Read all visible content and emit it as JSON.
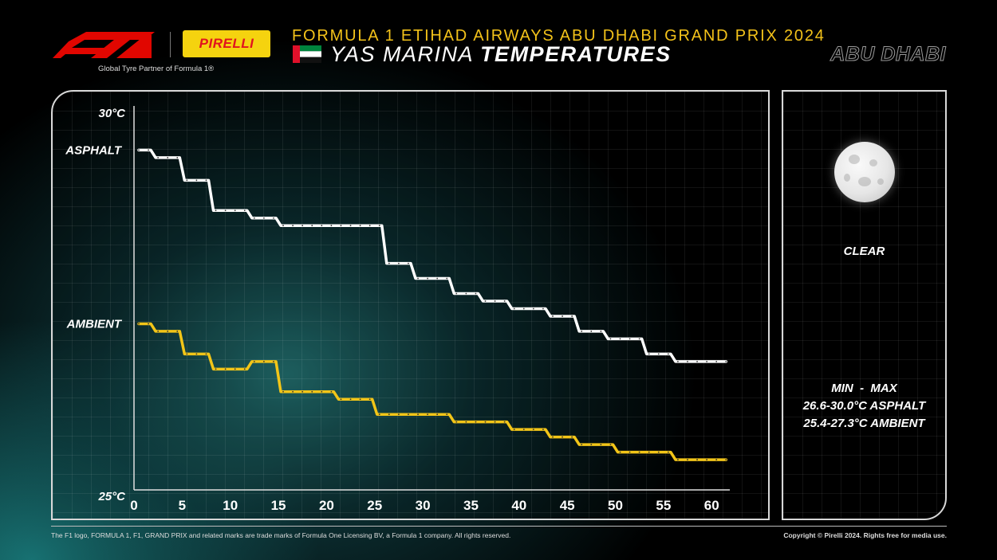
{
  "header": {
    "partner_text": "Global Tyre Partner of Formula 1®",
    "pirelli_logo_text": "PIRELLI",
    "event_title": "FORMULA 1 ETIHAD AIRWAYS ABU DHABI GRAND PRIX 2024",
    "circuit_name": "YAS MARINA",
    "page_subject": "TEMPERATURES",
    "location": "ABU DHABI"
  },
  "weather": {
    "condition": "CLEAR",
    "icon": "moon-icon",
    "minmax_label": "MIN  -  MAX",
    "asphalt_range": "26.6-30.0°C ASPHALT",
    "ambient_range": "25.4-27.3°C AMBIENT"
  },
  "footer": {
    "trademark": "The F1 logo, FORMULA 1, F1, GRAND PRIX and related marks are trade marks of Formula One Licensing BV, a Formula 1 company. All rights reserved.",
    "copyright": "Copyright © Pirelli 2024. Rights free for media use."
  },
  "colors": {
    "asphalt_line": "#ffffff",
    "ambient_line": "#f2c518",
    "title_accent": "#f3c21a",
    "f1_red": "#e10600",
    "pirelli_yellow": "#f5d30f"
  },
  "chart_data": {
    "type": "line",
    "x_ticks": [
      0,
      5,
      10,
      15,
      20,
      25,
      30,
      35,
      40,
      45,
      50,
      55,
      60
    ],
    "ylim": [
      25,
      30
    ],
    "xlim": [
      0,
      62
    ],
    "y_tick_labels": [
      "30°C",
      "25°C"
    ],
    "grid": true,
    "series": [
      {
        "name": "ASPHALT",
        "color": "#ffffff",
        "x": [
          0,
          1,
          2,
          3,
          4,
          5,
          6,
          7,
          8,
          9,
          10,
          11,
          12,
          13,
          14,
          15,
          16,
          17,
          18,
          19,
          20,
          21,
          22,
          23,
          24,
          25,
          26,
          27,
          28,
          29,
          30,
          31,
          32,
          33,
          34,
          35,
          36,
          37,
          38,
          39,
          40,
          41,
          42,
          43,
          44,
          45,
          46,
          47,
          48,
          49,
          50,
          51,
          52,
          53,
          54,
          55,
          56,
          57,
          58,
          59,
          60,
          61
        ],
        "values": [
          29.5,
          29.5,
          29.4,
          29.4,
          29.4,
          29.1,
          29.1,
          29.1,
          28.7,
          28.7,
          28.7,
          28.7,
          28.6,
          28.6,
          28.6,
          28.5,
          28.5,
          28.5,
          28.5,
          28.5,
          28.5,
          28.5,
          28.5,
          28.5,
          28.5,
          28.5,
          28.0,
          28.0,
          28.0,
          27.8,
          27.8,
          27.8,
          27.8,
          27.6,
          27.6,
          27.6,
          27.5,
          27.5,
          27.5,
          27.4,
          27.4,
          27.4,
          27.4,
          27.3,
          27.3,
          27.3,
          27.1,
          27.1,
          27.1,
          27.0,
          27.0,
          27.0,
          27.0,
          26.8,
          26.8,
          26.8,
          26.7,
          26.7,
          26.7,
          26.7,
          26.7,
          26.7
        ]
      },
      {
        "name": "AMBIENT",
        "color": "#f2c518",
        "x": [
          0,
          1,
          2,
          3,
          4,
          5,
          6,
          7,
          8,
          9,
          10,
          11,
          12,
          13,
          14,
          15,
          16,
          17,
          18,
          19,
          20,
          21,
          22,
          23,
          24,
          25,
          26,
          27,
          28,
          29,
          30,
          31,
          32,
          33,
          34,
          35,
          36,
          37,
          38,
          39,
          40,
          41,
          42,
          43,
          44,
          45,
          46,
          47,
          48,
          49,
          50,
          51,
          52,
          53,
          54,
          55,
          56,
          57,
          58,
          59,
          60,
          61
        ],
        "values": [
          27.2,
          27.2,
          27.1,
          27.1,
          27.1,
          26.8,
          26.8,
          26.8,
          26.6,
          26.6,
          26.6,
          26.6,
          26.7,
          26.7,
          26.7,
          26.3,
          26.3,
          26.3,
          26.3,
          26.3,
          26.3,
          26.2,
          26.2,
          26.2,
          26.2,
          26.0,
          26.0,
          26.0,
          26.0,
          26.0,
          26.0,
          26.0,
          26.0,
          25.9,
          25.9,
          25.9,
          25.9,
          25.9,
          25.9,
          25.8,
          25.8,
          25.8,
          25.8,
          25.7,
          25.7,
          25.7,
          25.6,
          25.6,
          25.6,
          25.6,
          25.5,
          25.5,
          25.5,
          25.5,
          25.5,
          25.5,
          25.4,
          25.4,
          25.4,
          25.4,
          25.4,
          25.4
        ]
      }
    ]
  }
}
